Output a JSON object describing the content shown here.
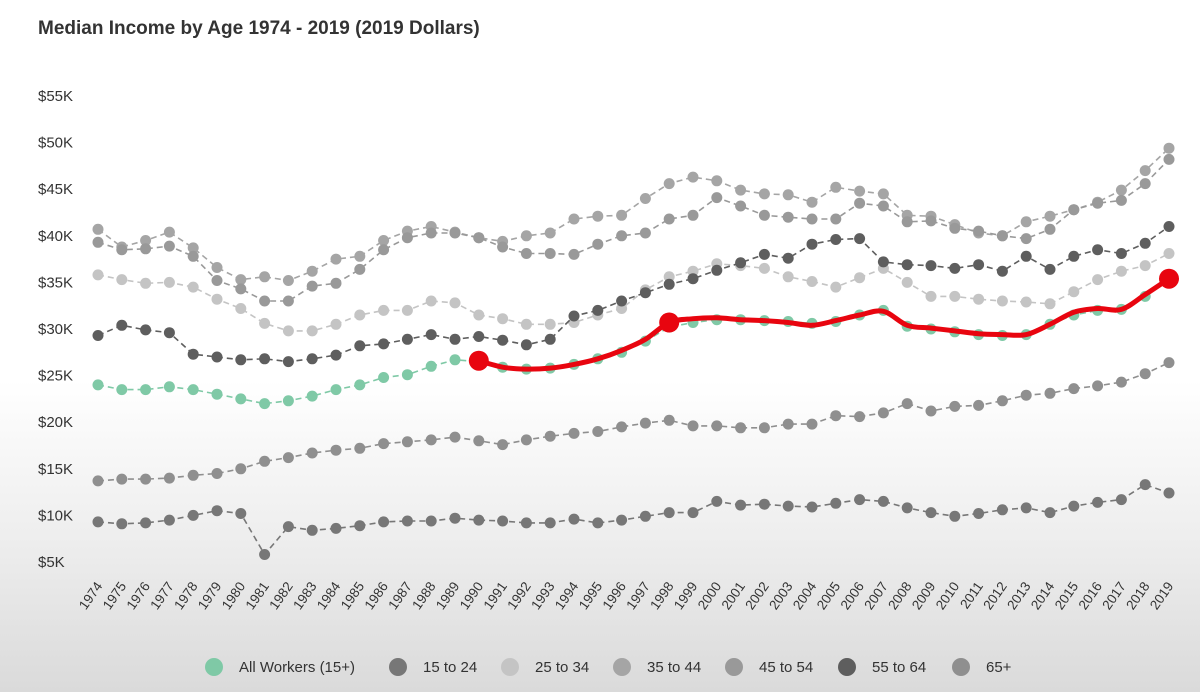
{
  "chart_data": {
    "type": "line",
    "title": "Median Income by Age 1974 - 2019 (2019 Dollars)",
    "xlabel": "",
    "ylabel": "",
    "ylim": [
      5000,
      55000
    ],
    "y_ticks": [
      {
        "value": 55000,
        "label": "$55K"
      },
      {
        "value": 50000,
        "label": "$50K"
      },
      {
        "value": 45000,
        "label": "$45K"
      },
      {
        "value": 40000,
        "label": "$40K"
      },
      {
        "value": 35000,
        "label": "$35K"
      },
      {
        "value": 30000,
        "label": "$30K"
      },
      {
        "value": 25000,
        "label": "$25K"
      },
      {
        "value": 20000,
        "label": "$20K"
      },
      {
        "value": 15000,
        "label": "$15K"
      },
      {
        "value": 10000,
        "label": "$10K"
      },
      {
        "value": 5000,
        "label": "$5K"
      }
    ],
    "x": [
      "1974",
      "1975",
      "1976",
      "1977",
      "1978",
      "1979",
      "1980",
      "1981",
      "1982",
      "1983",
      "1984",
      "1985",
      "1986",
      "1987",
      "1988",
      "1989",
      "1990",
      "1991",
      "1992",
      "1993",
      "1994",
      "1995",
      "1996",
      "1997",
      "1998",
      "1999",
      "2000",
      "2001",
      "2002",
      "2003",
      "2004",
      "2005",
      "2006",
      "2007",
      "2008",
      "2009",
      "2010",
      "2011",
      "2012",
      "2013",
      "2014",
      "2015",
      "2016",
      "2017",
      "2018",
      "2019"
    ],
    "grid": false,
    "legend_position": "bottom",
    "series": [
      {
        "name": "All Workers (15+)",
        "color": "#7fc9a6",
        "values": [
          24000,
          23500,
          23500,
          23800,
          23500,
          23000,
          22500,
          22000,
          22300,
          22800,
          23500,
          24000,
          24800,
          25100,
          26000,
          26700,
          26500,
          25900,
          25700,
          25800,
          26200,
          26800,
          27500,
          28700,
          30200,
          30700,
          31000,
          31000,
          30900,
          30800,
          30600,
          30800,
          31500,
          32000,
          30300,
          30000,
          29700,
          29400,
          29300,
          29400,
          30500,
          31500,
          32000,
          32100,
          33500,
          35500
        ]
      },
      {
        "name": "15 to 24",
        "color": "#777777",
        "values": [
          9300,
          9100,
          9200,
          9500,
          10000,
          10500,
          10200,
          5800,
          8800,
          8400,
          8600,
          8900,
          9300,
          9400,
          9400,
          9700,
          9500,
          9400,
          9200,
          9200,
          9600,
          9200,
          9500,
          9900,
          10300,
          10300,
          11500,
          11100,
          11200,
          11000,
          10900,
          11300,
          11700,
          11500,
          10800,
          10300,
          9900,
          10200,
          10600,
          10800,
          10300,
          11000,
          11400,
          11700,
          13300,
          12400
        ]
      },
      {
        "name": "25 to 34",
        "color": "#c4c4c4",
        "values": [
          35800,
          35300,
          34900,
          35000,
          34500,
          33200,
          32200,
          30600,
          29800,
          29800,
          30500,
          31500,
          32000,
          32000,
          33000,
          32800,
          31500,
          31100,
          30500,
          30500,
          30700,
          31500,
          32200,
          34200,
          35600,
          36200,
          37000,
          36800,
          36500,
          35600,
          35100,
          34500,
          35500,
          36500,
          35000,
          33500,
          33500,
          33200,
          33000,
          32900,
          32700,
          34000,
          35300,
          36200,
          36800,
          38100
        ]
      },
      {
        "name": "35 to 44",
        "color": "#a5a5a5",
        "values": [
          40700,
          38800,
          39500,
          40400,
          38700,
          36600,
          35300,
          35600,
          35200,
          36200,
          37500,
          37800,
          39500,
          40500,
          41000,
          40400,
          39800,
          39400,
          40000,
          40300,
          41800,
          42100,
          42200,
          44000,
          45600,
          46300,
          45900,
          44900,
          44500,
          44400,
          43600,
          45200,
          44800,
          44500,
          42200,
          42100,
          41200,
          40300,
          40000,
          41500,
          42100,
          42800,
          43600,
          44900,
          47000,
          49400
        ]
      },
      {
        "name": "45 to 54",
        "color": "#999999",
        "values": [
          39300,
          38500,
          38600,
          38900,
          37800,
          35200,
          34300,
          33000,
          33000,
          34600,
          34900,
          36400,
          38500,
          39800,
          40300,
          40300,
          39800,
          38800,
          38100,
          38100,
          38000,
          39100,
          40000,
          40300,
          41800,
          42200,
          44100,
          43200,
          42200,
          42000,
          41800,
          41800,
          43500,
          43200,
          41500,
          41600,
          40800,
          40500,
          40000,
          39700,
          40700,
          42800,
          43500,
          43800,
          45600,
          48200
        ]
      },
      {
        "name": "55 to 64",
        "color": "#5e5e5e",
        "values": [
          29300,
          30400,
          29900,
          29600,
          27300,
          27000,
          26700,
          26800,
          26500,
          26800,
          27200,
          28200,
          28400,
          28900,
          29400,
          28900,
          29200,
          28800,
          28300,
          28900,
          31400,
          32000,
          33000,
          33900,
          34800,
          35400,
          36300,
          37100,
          38000,
          37600,
          39100,
          39600,
          39700,
          37200,
          36900,
          36800,
          36500,
          36900,
          36200,
          37800,
          36400,
          37800,
          38500,
          38100,
          39200,
          41000
        ]
      },
      {
        "name": "65+",
        "color": "#8f8f8f",
        "values": [
          13700,
          13900,
          13900,
          14000,
          14300,
          14500,
          15000,
          15800,
          16200,
          16700,
          17000,
          17200,
          17700,
          17900,
          18100,
          18400,
          18000,
          17600,
          18100,
          18500,
          18800,
          19000,
          19500,
          19900,
          20200,
          19600,
          19600,
          19400,
          19400,
          19800,
          19800,
          20700,
          20600,
          21000,
          22000,
          21200,
          21700,
          21800,
          22300,
          22900,
          23100,
          23600,
          23900,
          24300,
          25200,
          26400
        ]
      }
    ],
    "highlight": {
      "color": "#e8050f",
      "x": [
        "1990",
        "1991",
        "1992",
        "1993",
        "1994",
        "1995",
        "1996",
        "1997",
        "1998",
        "1999",
        "2000",
        "2001",
        "2002",
        "2003",
        "2004",
        "2005",
        "2006",
        "2007",
        "2008",
        "2009",
        "2010",
        "2011",
        "2012",
        "2013",
        "2014",
        "2015",
        "2016",
        "2017",
        "2018",
        "2019"
      ],
      "values": [
        26600,
        25900,
        25700,
        25800,
        26200,
        26800,
        27700,
        28900,
        30700,
        31100,
        31200,
        31000,
        30900,
        30700,
        30400,
        30900,
        31500,
        31900,
        30400,
        30100,
        29800,
        29500,
        29400,
        29400,
        30500,
        31800,
        32200,
        32100,
        33700,
        35400
      ],
      "markers": [
        "1990",
        "1998",
        "2019"
      ]
    }
  }
}
